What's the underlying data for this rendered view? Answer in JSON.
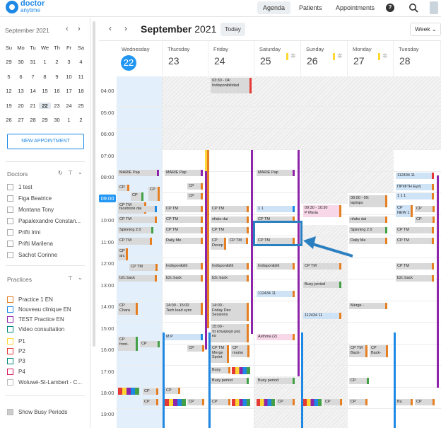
{
  "app": {
    "logo_line1": "doctor",
    "logo_line2": "anytime",
    "nav": [
      "Agenda",
      "Patients",
      "Appointments"
    ],
    "active_nav": "Agenda",
    "accent": "#1e88e5"
  },
  "sidebar": {
    "mini_title": "September 2021",
    "weekday_headers": [
      "Su",
      "Mo",
      "Tu",
      "We",
      "Th",
      "Fr",
      "Sa"
    ],
    "weeks": [
      [
        "29",
        "30",
        "31",
        "1",
        "2",
        "3",
        "4"
      ],
      [
        "5",
        "6",
        "7",
        "8",
        "9",
        "10",
        "11"
      ],
      [
        "12",
        "13",
        "14",
        "15",
        "16",
        "17",
        "18"
      ],
      [
        "19",
        "20",
        "21",
        "22",
        "23",
        "24",
        "25"
      ],
      [
        "26",
        "27",
        "28",
        "29",
        "30",
        "1",
        "2"
      ]
    ],
    "selected_day": "22",
    "new_appointment": "NEW APPOINTMENT",
    "doctors_title": "Doctors",
    "doctors": [
      "1 test",
      "Figa Beatrice",
      "Montana Tony",
      "Papalexandre Constan...",
      "Prifti Irini",
      "Prifti Marilena",
      "Sachot Corinne"
    ],
    "practices_title": "Practices",
    "practices": [
      {
        "label": "Practice 1 EN",
        "color": "#e67e22"
      },
      {
        "label": "Nouveau clinique EN",
        "color": "#1e88e5"
      },
      {
        "label": "TEST Practice EN",
        "color": "#8e24aa"
      },
      {
        "label": "Video consultation",
        "color": "#00897b"
      },
      {
        "label": "P1",
        "color": "#fdd835"
      },
      {
        "label": "P2",
        "color": "#e53935"
      },
      {
        "label": "P3",
        "color": "#00897b"
      },
      {
        "label": "P4",
        "color": "#d81b60"
      },
      {
        "label": "Woluwé-St-Lambert - C...",
        "color": "#bbbbbb"
      }
    ],
    "show_busy": "Show Busy Periods"
  },
  "calendar": {
    "month": "September",
    "year": "2021",
    "today_label": "Today",
    "view": "Week",
    "days": [
      {
        "name": "Wednesday",
        "num": "22",
        "current": true
      },
      {
        "name": "Thursday",
        "num": "23"
      },
      {
        "name": "Friday",
        "num": "24"
      },
      {
        "name": "Saturday",
        "num": "25"
      },
      {
        "name": "Sunday",
        "num": "26"
      },
      {
        "name": "Monday",
        "num": "27"
      },
      {
        "name": "Tuesday",
        "num": "28"
      }
    ],
    "hours": [
      "04:00",
      "05:00",
      "06:00",
      "07:00",
      "08:00",
      "09:00",
      "10:00",
      "11:00",
      "12:00",
      "13:00",
      "14:00",
      "15:00",
      "16:00",
      "17:00",
      "18:00",
      "19:00"
    ],
    "current_hour": "09:00",
    "events": {
      "fri_0330": "03:30 - 04:",
      "fri_0330b": "Indisponibilidad",
      "marie": "MARIE Pap",
      "cp": "CP",
      "cp_tm": "CP  TM",
      "facebook": "facebook dai",
      "spinning": "Spinning 2.0",
      "daily": "Daily Me",
      "devop": "Devop",
      "indispo": "Indisponibilit",
      "b2c": "b2c back",
      "chara": "Chara",
      "tech_time": "14:00 - 15:00",
      "tech": "Tech lead sync",
      "friday_time": "14:00 -",
      "friday_dev": "Friday Dev",
      "sessions": "Sessions",
      "ev15": "15:00 -",
      "greek": "τα εσωψυχα μας",
      "ka": "κα",
      "mp": "M P",
      "front": "front-",
      "merge": "Merge",
      "sprint": "Sprint",
      "murtw": "murtw",
      "busy": "Busy",
      "busy_period": "Busy period",
      "nfako": "nfako dai",
      "one_one": "1 1",
      "sun_time": "09:30 - 10:30",
      "sun_name": "P Maria",
      "mon_time": "09:00 - 09:",
      "laptops": "laptops",
      "merge_dash": "Merge -",
      "back": "Back-",
      "asthma": "Asthma (2)",
      "id112": "112434 11",
      "priftiepi": "ΠΡΙΦΤΗ Ειρή",
      "one11": "1 1 1",
      "new1": "NEW 1",
      "bu": "Bu",
      "arc": "arc"
    }
  }
}
